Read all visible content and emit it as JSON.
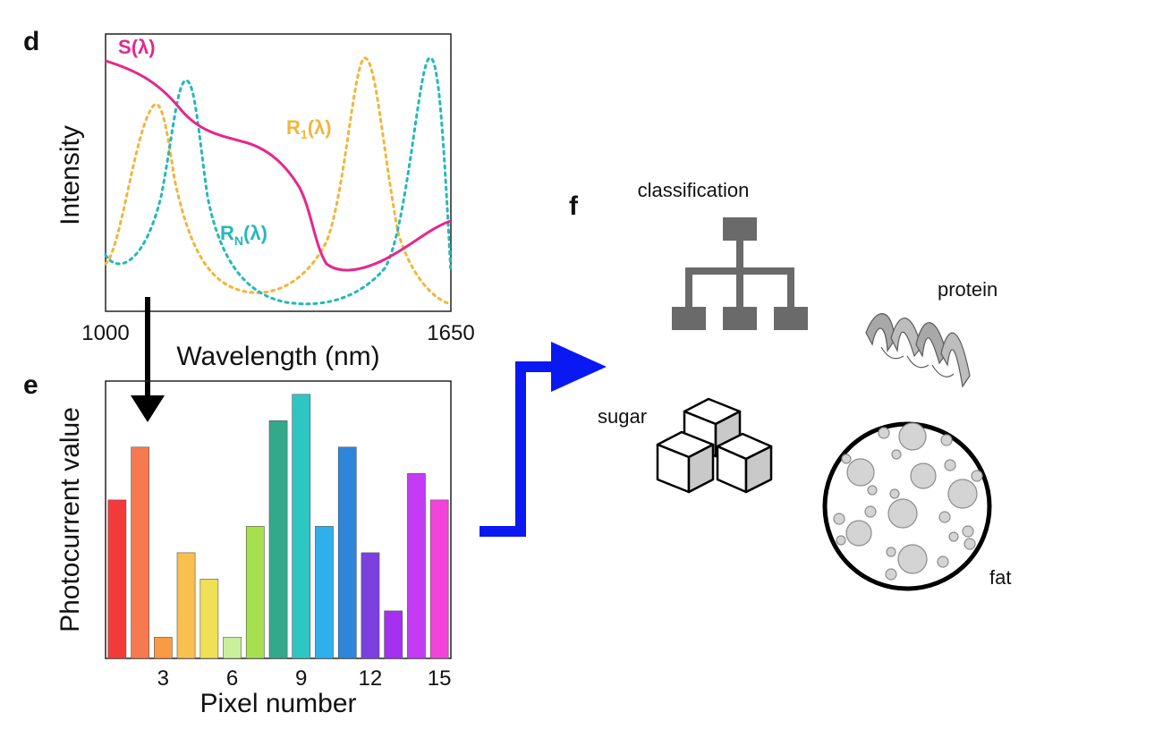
{
  "panels": {
    "d": "d",
    "e": "e",
    "f": "f"
  },
  "spectrum_chart": {
    "type": "line",
    "xlabel": "Wavelength (nm)",
    "ylabel": "Intensity",
    "xlim": [
      1000,
      1650
    ],
    "x_ticks": [
      "1000",
      "1650"
    ],
    "series_labels": {
      "s": {
        "main": "S",
        "sub": "",
        "suffix": "(λ)",
        "color": "#e6278a"
      },
      "r1": {
        "main": "R",
        "sub": "1",
        "suffix": "(λ)",
        "color": "#f0b63c"
      },
      "rn": {
        "main": "R",
        "sub": "N",
        "suffix": "(λ)",
        "color": "#25b8b8"
      }
    }
  },
  "chart_data": {
    "type": "bar",
    "xlabel": "Pixel number",
    "ylabel": "Photocurrent value",
    "x_ticks": [
      "3",
      "6",
      "9",
      "12",
      "15"
    ],
    "categories": [
      1,
      2,
      3,
      4,
      5,
      6,
      7,
      8,
      9,
      10,
      11,
      12,
      13,
      14,
      15
    ],
    "values": [
      0.6,
      0.8,
      0.08,
      0.4,
      0.3,
      0.08,
      0.5,
      0.9,
      1.0,
      0.5,
      0.8,
      0.4,
      0.18,
      0.7,
      0.6
    ],
    "ylim": [
      0,
      1.05
    ],
    "colors": [
      "#f33a3a",
      "#f7794f",
      "#f89b45",
      "#f9bf4f",
      "#f0e055",
      "#c8f09a",
      "#a6e04e",
      "#33a98c",
      "#2ec6c2",
      "#2fb0ec",
      "#2d86d9",
      "#7c3fe0",
      "#a630f0",
      "#c43bf5",
      "#f343da"
    ]
  },
  "classification": {
    "title": "classification",
    "categories": {
      "protein": "protein",
      "sugar": "sugar",
      "fat": "fat"
    },
    "tree_color": "#6a6a6a",
    "arrow_color": "#0a18f2"
  }
}
